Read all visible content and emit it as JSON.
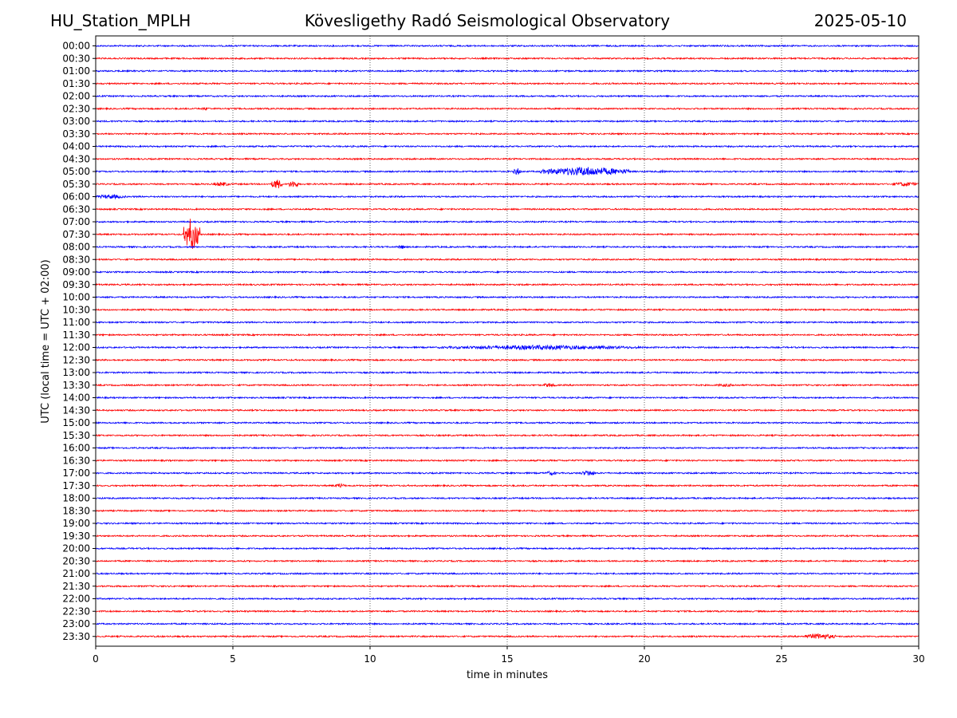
{
  "header": {
    "station": "HU_Station_MPLH",
    "observatory": "Kövesligethy Radó Seismological Observatory",
    "date": "2025-05-10"
  },
  "chart_data": {
    "type": "line",
    "title": "Kövesligethy Radó Seismological Observatory",
    "xlabel": "time in minutes",
    "ylabel": "UTC (local time = UTC + 02:00)",
    "xlim": [
      0,
      30
    ],
    "xticks": [
      0,
      5,
      10,
      15,
      20,
      25,
      30
    ],
    "grid": "vertical dotted lines at 5, 10, 15, 20, 25",
    "line_colors": [
      "#0000ff",
      "#ff0000"
    ],
    "rows": [
      "00:00",
      "00:30",
      "01:00",
      "01:30",
      "02:00",
      "02:30",
      "03:00",
      "03:30",
      "04:00",
      "04:30",
      "05:00",
      "05:30",
      "06:00",
      "06:30",
      "07:00",
      "07:30",
      "08:00",
      "08:30",
      "09:00",
      "09:30",
      "10:00",
      "10:30",
      "11:00",
      "11:30",
      "12:00",
      "12:30",
      "13:00",
      "13:30",
      "14:00",
      "14:30",
      "15:00",
      "15:30",
      "16:00",
      "16:30",
      "17:00",
      "17:30",
      "18:00",
      "18:30",
      "19:00",
      "19:30",
      "20:00",
      "20:30",
      "21:00",
      "21:30",
      "22:00",
      "22:30",
      "23:00",
      "23:30"
    ],
    "events": [
      {
        "row": "02:30",
        "start_min": 3.8,
        "end_min": 4.2,
        "amp": 2
      },
      {
        "row": "05:00",
        "start_min": 15.2,
        "end_min": 15.5,
        "amp": 5
      },
      {
        "row": "05:00",
        "start_min": 16.2,
        "end_min": 19.5,
        "amp": 6
      },
      {
        "row": "05:00",
        "start_min": 20.5,
        "end_min": 20.8,
        "amp": 2
      },
      {
        "row": "05:30",
        "start_min": 4.3,
        "end_min": 4.9,
        "amp": 3
      },
      {
        "row": "05:30",
        "start_min": 6.4,
        "end_min": 6.8,
        "amp": 7
      },
      {
        "row": "05:30",
        "start_min": 7.0,
        "end_min": 7.4,
        "amp": 5
      },
      {
        "row": "05:30",
        "start_min": 29.0,
        "end_min": 30.0,
        "amp": 3
      },
      {
        "row": "06:00",
        "start_min": 0.0,
        "end_min": 1.1,
        "amp": 3
      },
      {
        "row": "07:30",
        "start_min": 3.2,
        "end_min": 3.8,
        "amp": 22
      },
      {
        "row": "08:00",
        "start_min": 11.0,
        "end_min": 11.3,
        "amp": 3
      },
      {
        "row": "12:00",
        "start_min": 12.5,
        "end_min": 20.0,
        "amp": 3
      },
      {
        "row": "13:30",
        "start_min": 16.3,
        "end_min": 16.8,
        "amp": 3
      },
      {
        "row": "13:30",
        "start_min": 22.5,
        "end_min": 23.5,
        "amp": 2
      },
      {
        "row": "17:00",
        "start_min": 16.4,
        "end_min": 16.8,
        "amp": 3
      },
      {
        "row": "17:00",
        "start_min": 17.7,
        "end_min": 18.2,
        "amp": 4
      },
      {
        "row": "17:30",
        "start_min": 8.7,
        "end_min": 9.1,
        "amp": 3
      },
      {
        "row": "23:30",
        "start_min": 25.8,
        "end_min": 27.0,
        "amp": 4
      }
    ]
  }
}
